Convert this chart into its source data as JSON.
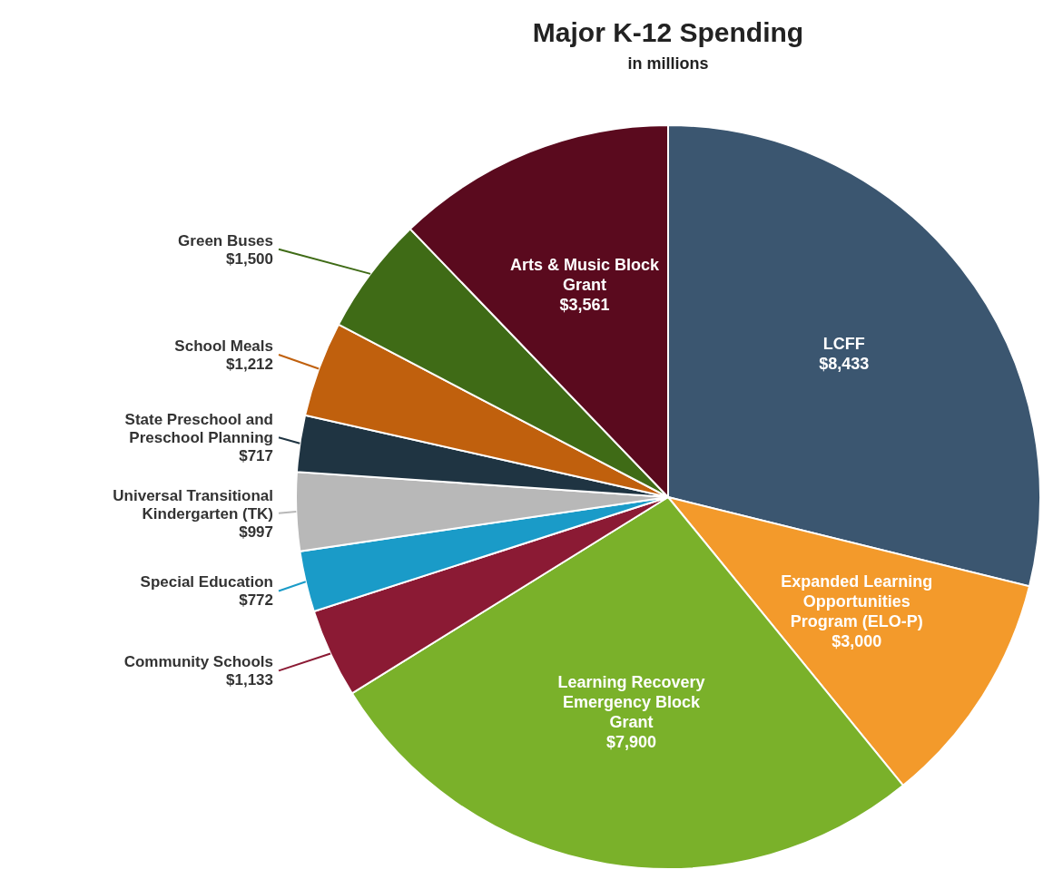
{
  "chart_data": {
    "type": "pie",
    "title": "Major K-12 Spending",
    "subtitle": "in millions",
    "categories": [
      "LCFF",
      "Expanded Learning Opportunities Program (ELO-P)",
      "Learning Recovery Emergency Block Grant",
      "Community Schools",
      "Special Education",
      "Universal Transitional Kindergarten (TK)",
      "State Preschool and Preschool Planning",
      "School Meals",
      "Green Buses",
      "Arts & Music Block Grant"
    ],
    "values": [
      8433,
      3000,
      7900,
      1133,
      772,
      997,
      717,
      1212,
      1500,
      3561
    ],
    "value_labels": [
      "$8,433",
      "$3,000",
      "$7,900",
      "$1,133",
      "$772",
      "$997",
      "$717",
      "$1,212",
      "$1,500",
      "$3,561"
    ],
    "colors": [
      "#3b5670",
      "#f39a2b",
      "#7ab12a",
      "#8b1a34",
      "#1a9bc8",
      "#b8b8b8",
      "#1f3442",
      "#c0600d",
      "#3f6b16",
      "#5a0a1e"
    ]
  }
}
